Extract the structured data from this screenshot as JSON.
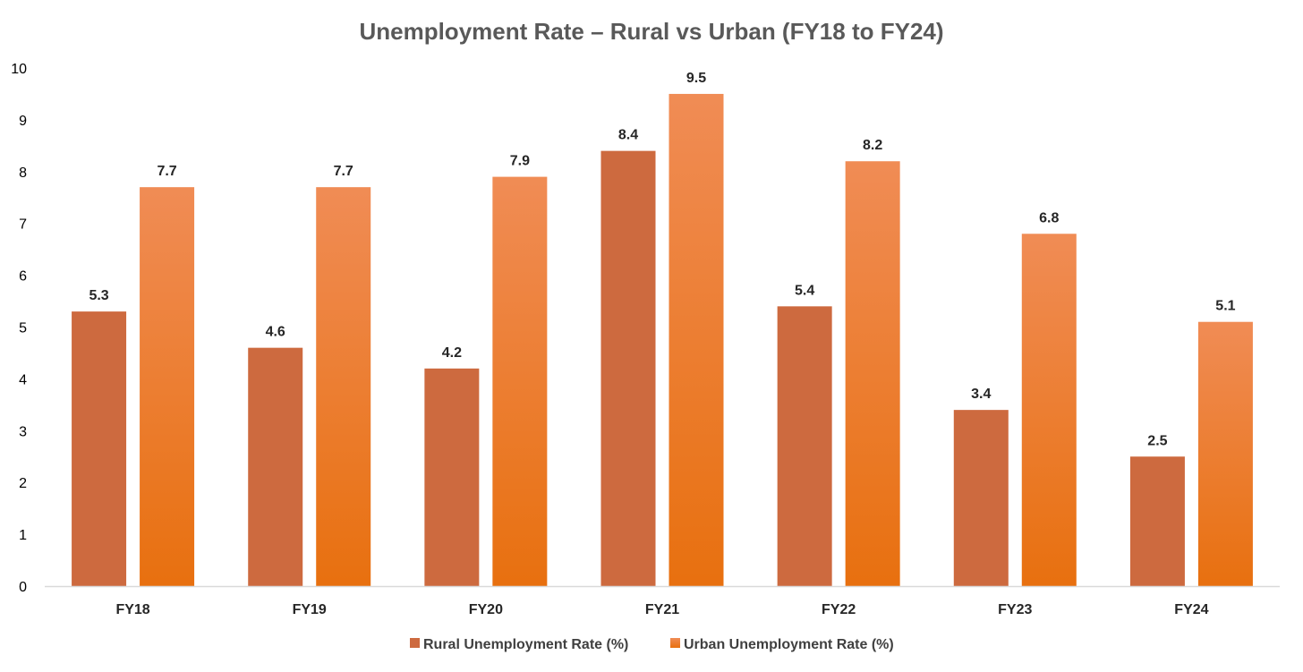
{
  "chart_data": {
    "type": "bar",
    "title": "Unemployment Rate – Rural vs Urban (FY18 to FY24)",
    "categories": [
      "FY18",
      "FY19",
      "FY20",
      "FY21",
      "FY22",
      "FY23",
      "FY24"
    ],
    "series": [
      {
        "name": "Rural Unemployment Rate (%)",
        "values": [
          5.3,
          4.6,
          4.2,
          8.4,
          5.4,
          3.4,
          2.5
        ],
        "color": "#cd6a3f"
      },
      {
        "name": "Urban Unemployment Rate (%)",
        "values": [
          7.7,
          7.7,
          7.9,
          9.5,
          8.2,
          6.8,
          5.1
        ],
        "color": "#f07a22",
        "color_top": "#f08c55",
        "color_bottom": "#e8700f"
      }
    ],
    "yticks": [
      0,
      1,
      2,
      3,
      4,
      5,
      6,
      7,
      8,
      9,
      10
    ],
    "ylim": [
      0,
      10
    ],
    "xlabel": "",
    "ylabel": "",
    "grid": false,
    "legend_position": "bottom",
    "data_labels": true
  }
}
